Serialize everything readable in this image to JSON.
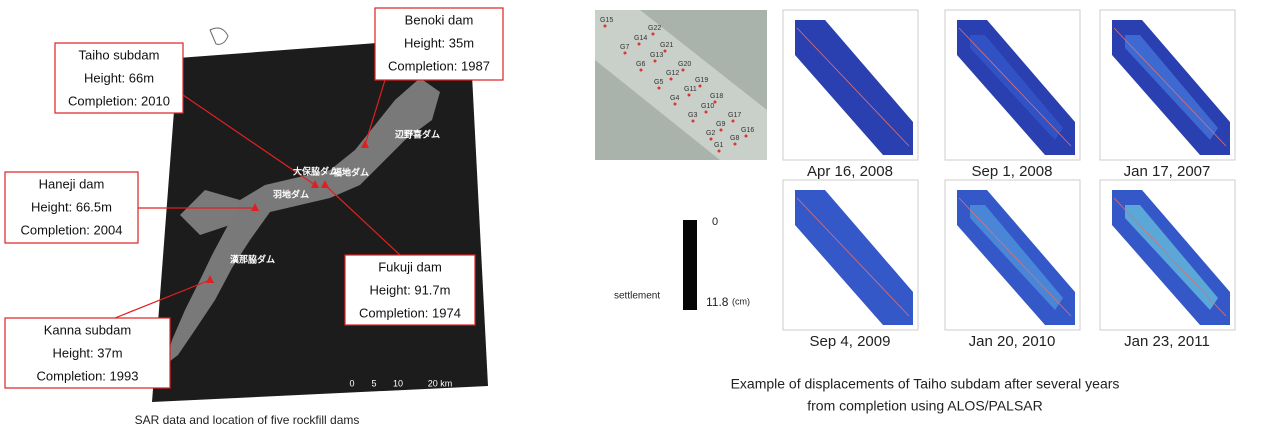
{
  "left_panel": {
    "callouts": [
      {
        "name": "Benoki dam",
        "height": "Height: 35m",
        "completion": "Completion: 1987"
      },
      {
        "name": "Taiho subdam",
        "height": "Height: 66m",
        "completion": "Completion: 2010"
      },
      {
        "name": "Haneji dam",
        "height": "Height: 66.5m",
        "completion": "Completion: 2004"
      },
      {
        "name": "Fukuji dam",
        "height": "Height: 91.7m",
        "completion": "Completion: 1974"
      },
      {
        "name": "Kanna subdam",
        "height": "Height: 37m",
        "completion": "Completion: 1993"
      }
    ],
    "map_labels": [
      "辺野喜ダム",
      "大保脇ダム",
      "福地ダム",
      "羽地ダム",
      "漢那脇ダム"
    ],
    "scale_labels": [
      "0",
      "5",
      "10",
      "20 km"
    ],
    "caption": "SAR data and location of five rockfill dams"
  },
  "right_panel": {
    "point_labels": [
      "G15",
      "G22",
      "G14",
      "G7",
      "G21",
      "G13",
      "G6",
      "G20",
      "G12",
      "G19",
      "G5",
      "G11",
      "G4",
      "G18",
      "G10",
      "G3",
      "G17",
      "G9",
      "G2",
      "G16",
      "G8",
      "G1"
    ],
    "dates": [
      "Apr 16, 2008",
      "Sep 1, 2008",
      "Jan 17, 2007",
      "Sep 4, 2009",
      "Jan 20, 2010",
      "Jan 23, 2011"
    ],
    "legend": {
      "title": "settlement",
      "min": "0",
      "max": "11.8",
      "unit": "(cm)"
    },
    "caption": [
      "Example of displacements of Taiho subdam after several years",
      "from completion using ALOS/PALSAR"
    ]
  }
}
